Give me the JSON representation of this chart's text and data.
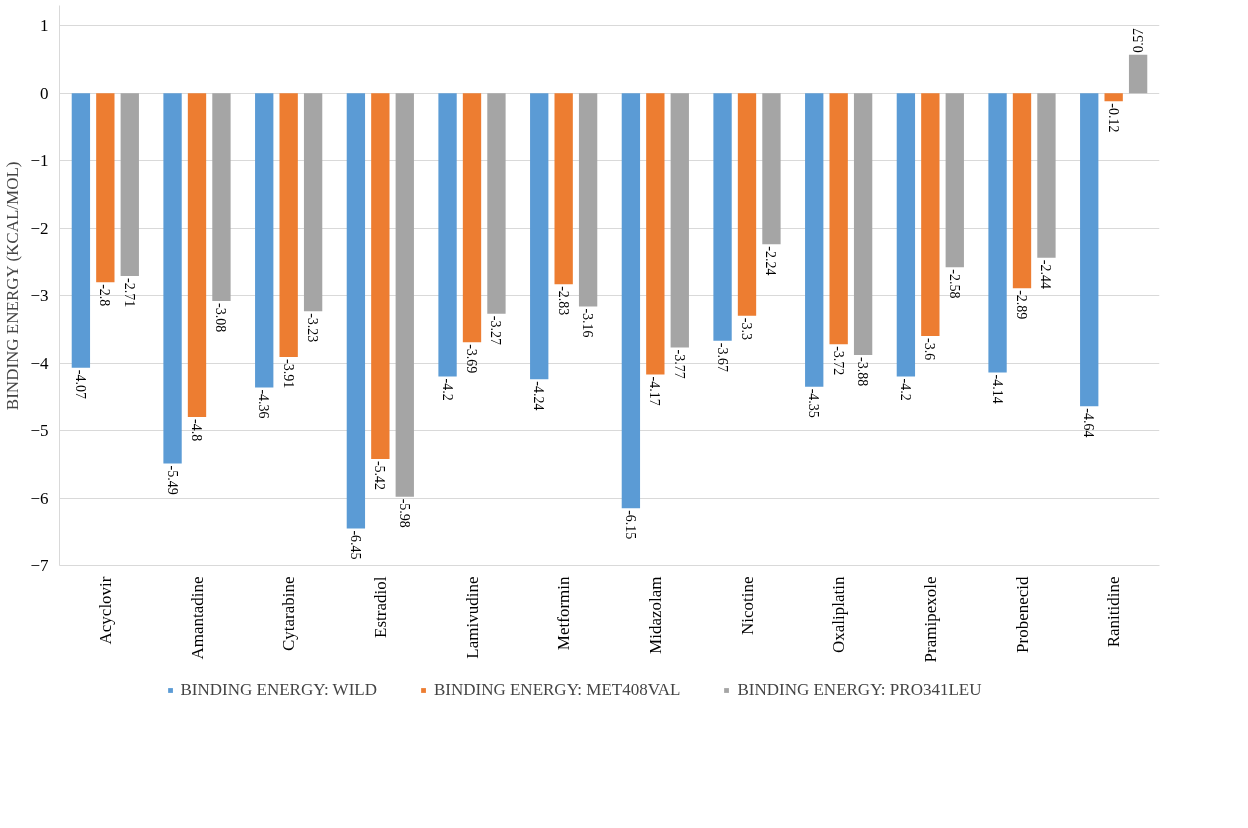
{
  "chart_data": {
    "type": "bar",
    "ylabel": "BINDING ENERGY (KCAL/MOL)",
    "categories": [
      "Acyclovir",
      "Amantadine",
      "Cytarabine",
      "Estradiol",
      "Lamivudine",
      "Metformin",
      "Midazolam",
      "Nicotine",
      "Oxaliplatin",
      "Pramipexole",
      "Probenecid",
      "Ranitidine"
    ],
    "series": [
      {
        "name": "BINDING ENERGY: WILD",
        "color": "#5b9bd5",
        "values": [
          -4.07,
          -5.49,
          -4.36,
          -6.45,
          -4.2,
          -4.24,
          -6.15,
          -3.67,
          -4.35,
          -4.2,
          -4.14,
          -4.64
        ]
      },
      {
        "name": "BINDING ENERGY: MET408VAL",
        "color": "#ed7d31",
        "values": [
          -2.8,
          -4.8,
          -3.91,
          -5.42,
          -3.69,
          -2.83,
          -4.17,
          -3.3,
          -3.72,
          -3.6,
          -2.89,
          -0.12
        ]
      },
      {
        "name": "BINDING ENERGY: PRO341LEU",
        "color": "#a5a5a5",
        "values": [
          -2.71,
          -3.08,
          -3.23,
          -5.98,
          -3.27,
          -3.16,
          -3.77,
          -2.24,
          -3.88,
          -2.58,
          -2.44,
          0.57
        ]
      }
    ],
    "ylim": [
      -7,
      1.3
    ],
    "yticks": [
      -7,
      -6,
      -5,
      -4,
      -3,
      -2,
      -1,
      0,
      1
    ],
    "grid": "y",
    "legend": "bottom",
    "data_labels": true
  }
}
